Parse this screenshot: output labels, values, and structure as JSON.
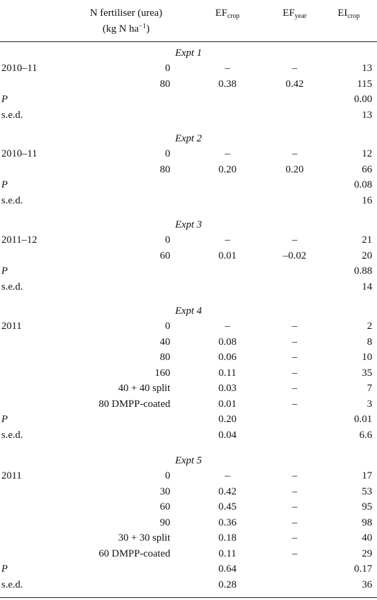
{
  "header": {
    "n_fertiliser_line1": "N fertiliser (urea)",
    "n_fertiliser_line2": "(kg N ha",
    "n_fertiliser_exp": "−1",
    "n_fertiliser_close": ")",
    "ef_crop": "EF",
    "ef_crop_sub": "crop",
    "ef_year": "EF",
    "ef_year_sub": "year",
    "ei_crop": "EI",
    "ei_crop_sub": "crop"
  },
  "sections": [
    {
      "title": "Expt 1",
      "rows": [
        {
          "year": "2010–11",
          "n": "0",
          "ef_crop": "–",
          "ef_year": "–",
          "ei_crop": "13"
        },
        {
          "year": "",
          "n": "80",
          "ef_crop": "0.38",
          "ef_year": "0.42",
          "ei_crop": "115"
        },
        {
          "year": "P",
          "n": "",
          "ef_crop": "",
          "ef_year": "",
          "ei_crop": "0.00",
          "italic": true
        },
        {
          "year": "s.e.d.",
          "n": "",
          "ef_crop": "",
          "ef_year": "",
          "ei_crop": "13"
        }
      ]
    },
    {
      "title": "Expt 2",
      "rows": [
        {
          "year": "2010–11",
          "n": "0",
          "ef_crop": "–",
          "ef_year": "–",
          "ei_crop": "12"
        },
        {
          "year": "",
          "n": "80",
          "ef_crop": "0.20",
          "ef_year": "0.20",
          "ei_crop": "66"
        },
        {
          "year": "P",
          "n": "",
          "ef_crop": "",
          "ef_year": "",
          "ei_crop": "0.08",
          "italic": true
        },
        {
          "year": "s.e.d.",
          "n": "",
          "ef_crop": "",
          "ef_year": "",
          "ei_crop": "16"
        }
      ]
    },
    {
      "title": "Expt 3",
      "rows": [
        {
          "year": "2011–12",
          "n": "0",
          "ef_crop": "–",
          "ef_year": "–",
          "ei_crop": "21"
        },
        {
          "year": "",
          "n": "60",
          "ef_crop": "0.01",
          "ef_year": "–0.02",
          "ei_crop": "20"
        },
        {
          "year": "P",
          "n": "",
          "ef_crop": "",
          "ef_year": "",
          "ei_crop": "0.88",
          "italic": true
        },
        {
          "year": "s.e.d.",
          "n": "",
          "ef_crop": "",
          "ef_year": "",
          "ei_crop": "14"
        }
      ]
    },
    {
      "title": "Expt 4",
      "rows": [
        {
          "year": "2011",
          "n": "0",
          "ef_crop": "–",
          "ef_year": "–",
          "ei_crop": "2"
        },
        {
          "year": "",
          "n": "40",
          "ef_crop": "0.08",
          "ef_year": "–",
          "ei_crop": "8"
        },
        {
          "year": "",
          "n": "80",
          "ef_crop": "0.06",
          "ef_year": "–",
          "ei_crop": "10"
        },
        {
          "year": "",
          "n": "160",
          "ef_crop": "0.11",
          "ef_year": "–",
          "ei_crop": "35"
        },
        {
          "year": "",
          "n": "40 + 40 split",
          "ef_crop": "0.03",
          "ef_year": "–",
          "ei_crop": "7"
        },
        {
          "year": "",
          "n": "80 DMPP-coated",
          "ef_crop": "0.01",
          "ef_year": "–",
          "ei_crop": "3"
        },
        {
          "year": "P",
          "n": "",
          "ef_crop": "0.20",
          "ef_year": "",
          "ei_crop": "0.01",
          "italic": true
        },
        {
          "year": "s.e.d.",
          "n": "",
          "ef_crop": "0.04",
          "ef_year": "",
          "ei_crop": "6.6"
        }
      ]
    },
    {
      "title": "Expt 5",
      "rows": [
        {
          "year": "2011",
          "n": "0",
          "ef_crop": "–",
          "ef_year": "–",
          "ei_crop": "17"
        },
        {
          "year": "",
          "n": "30",
          "ef_crop": "0.42",
          "ef_year": "–",
          "ei_crop": "53"
        },
        {
          "year": "",
          "n": "60",
          "ef_crop": "0.45",
          "ef_year": "–",
          "ei_crop": "95"
        },
        {
          "year": "",
          "n": "90",
          "ef_crop": "0.36",
          "ef_year": "–",
          "ei_crop": "98"
        },
        {
          "year": "",
          "n": "30 + 30 split",
          "ef_crop": "0.18",
          "ef_year": "–",
          "ei_crop": "40"
        },
        {
          "year": "",
          "n": "60 DMPP-coated",
          "ef_crop": "0.11",
          "ef_year": "–",
          "ei_crop": "29"
        },
        {
          "year": "P",
          "n": "",
          "ef_crop": "0.64",
          "ef_year": "",
          "ei_crop": "0.17",
          "italic": true
        },
        {
          "year": "s.e.d.",
          "n": "",
          "ef_crop": "0.28",
          "ef_year": "",
          "ei_crop": "36"
        }
      ]
    }
  ]
}
